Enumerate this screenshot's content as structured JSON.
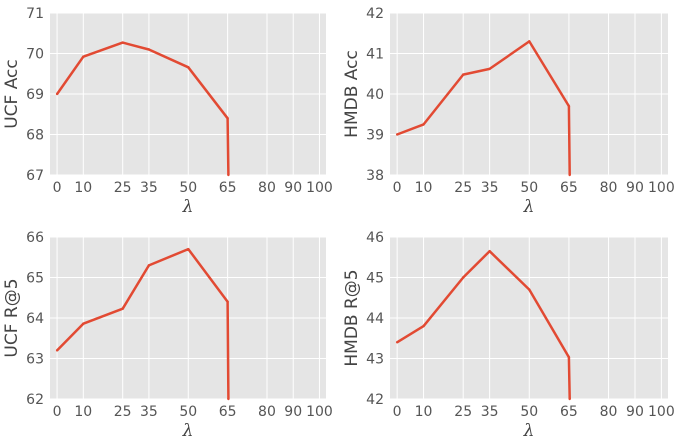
{
  "chart_data": [
    {
      "type": "line",
      "xlabel": "λ",
      "ylabel": "UCF Acc",
      "ylim": [
        67,
        71
      ],
      "yticks": [
        67,
        68,
        69,
        70,
        71
      ],
      "xticks": [
        0,
        10,
        25,
        35,
        50,
        65,
        80,
        90,
        100
      ],
      "x": [
        0,
        10,
        25,
        35,
        50,
        65,
        65.3
      ],
      "y": [
        69.0,
        69.92,
        70.27,
        70.1,
        69.66,
        68.4,
        67.0
      ],
      "grid": true,
      "color": "#e24a33"
    },
    {
      "type": "line",
      "xlabel": "λ",
      "ylabel": "HMDB Acc",
      "ylim": [
        38,
        42
      ],
      "yticks": [
        38,
        39,
        40,
        41,
        42
      ],
      "xticks": [
        0,
        10,
        25,
        35,
        50,
        65,
        80,
        90,
        100
      ],
      "x": [
        0,
        10,
        25,
        35,
        50,
        65,
        65.3
      ],
      "y": [
        39.0,
        39.25,
        40.48,
        40.62,
        41.3,
        39.7,
        38.0
      ],
      "grid": true,
      "color": "#e24a33"
    },
    {
      "type": "line",
      "xlabel": "λ",
      "ylabel": "UCF R@5",
      "ylim": [
        62,
        66
      ],
      "yticks": [
        62,
        63,
        64,
        65,
        66
      ],
      "xticks": [
        0,
        10,
        25,
        35,
        50,
        65,
        80,
        90,
        100
      ],
      "x": [
        0,
        10,
        25,
        35,
        50,
        65,
        65.3
      ],
      "y": [
        63.2,
        63.86,
        64.23,
        65.3,
        65.7,
        64.4,
        62.0
      ],
      "grid": true,
      "color": "#e24a33"
    },
    {
      "type": "line",
      "xlabel": "λ",
      "ylabel": "HMDB R@5",
      "ylim": [
        42,
        46
      ],
      "yticks": [
        42,
        43,
        44,
        45,
        46
      ],
      "xticks": [
        0,
        10,
        25,
        35,
        50,
        65,
        80,
        90,
        100
      ],
      "x": [
        0,
        10,
        25,
        35,
        50,
        65,
        65.3
      ],
      "y": [
        43.4,
        43.8,
        45.0,
        45.65,
        44.7,
        43.03,
        42.0
      ],
      "grid": true,
      "color": "#e24a33"
    }
  ]
}
